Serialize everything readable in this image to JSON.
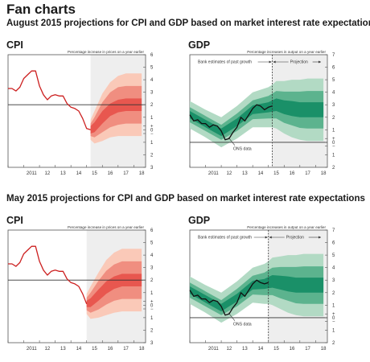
{
  "page": {
    "title": "Fan charts",
    "section_aug": "August 2015 projections for CPI and GDP based on market interest rate expectations",
    "section_may": "May 2015 projections for CPI and GDP based on market interest rate expectations"
  },
  "colors": {
    "cpi_line": "#cc1f1f",
    "cpi_band_inner": "#e8574f",
    "cpi_band_mid": "#f08e80",
    "cpi_band_outer": "#fac9b8",
    "gdp_line": "#111111",
    "gdp_band_inner": "#1a9068",
    "gdp_band_mid": "#5cb38e",
    "gdp_band_outer": "#b2dac4",
    "projection_shade": "#eeeeee"
  },
  "chart_data": [
    {
      "id": "aug-cpi",
      "type": "line",
      "label": "CPI",
      "ylabel": "Percentage increase in prices on a year earlier",
      "ylim": [
        -3,
        6
      ],
      "yticks": [
        "6",
        "5",
        "4",
        "3",
        "2",
        "1",
        "+",
        "0",
        "−",
        "1",
        "2",
        "3"
      ],
      "ytick_values": [
        6,
        5,
        4,
        3,
        2,
        1,
        0.3,
        0,
        -0.3,
        -1,
        -2,
        -3
      ],
      "xlim": [
        2010,
        2018.75
      ],
      "xtick_labels": [
        "2011",
        "12",
        "13",
        "14",
        "15",
        "16",
        "17",
        "18"
      ],
      "xtick_values": [
        2011.5,
        2012.5,
        2013.5,
        2014.5,
        2015.5,
        2016.5,
        2017.5,
        2018.5
      ],
      "target": 2,
      "zero_line": false,
      "projection_start": 2015.25,
      "history": [
        [
          2010.0,
          3.3
        ],
        [
          2010.25,
          3.3
        ],
        [
          2010.5,
          3.1
        ],
        [
          2010.75,
          3.4
        ],
        [
          2011.0,
          4.1
        ],
        [
          2011.25,
          4.4
        ],
        [
          2011.5,
          4.7
        ],
        [
          2011.75,
          4.7
        ],
        [
          2012.0,
          3.5
        ],
        [
          2012.25,
          2.8
        ],
        [
          2012.5,
          2.4
        ],
        [
          2012.75,
          2.7
        ],
        [
          2013.0,
          2.8
        ],
        [
          2013.25,
          2.7
        ],
        [
          2013.5,
          2.7
        ],
        [
          2013.75,
          2.1
        ],
        [
          2014.0,
          1.8
        ],
        [
          2014.25,
          1.7
        ],
        [
          2014.5,
          1.5
        ],
        [
          2014.75,
          0.9
        ],
        [
          2015.0,
          0.1
        ],
        [
          2015.25,
          0.0
        ]
      ],
      "fan": {
        "x": [
          2015.25,
          2015.5,
          2016.0,
          2016.5,
          2017.0,
          2017.5,
          2018.0,
          2018.5
        ],
        "center": [
          0.0,
          0.2,
          1.0,
          1.6,
          1.9,
          2.0,
          2.0,
          2.0
        ],
        "inner": [
          0.3,
          0.4,
          0.5,
          0.5,
          0.5,
          0.5,
          0.5,
          0.5
        ],
        "mid": [
          0.5,
          0.8,
          1.2,
          1.4,
          1.5,
          1.5,
          1.5,
          1.5
        ],
        "outer": [
          0.8,
          1.3,
          1.9,
          2.2,
          2.4,
          2.5,
          2.5,
          2.5
        ]
      }
    },
    {
      "id": "aug-gdp",
      "type": "line",
      "label": "GDP",
      "ylabel": "Percentage increases in output on a year earlier",
      "ylim": [
        -2,
        7
      ],
      "yticks": [
        "7",
        "6",
        "5",
        "4",
        "3",
        "2",
        "1",
        "+",
        "0",
        "−",
        "1",
        "2"
      ],
      "ytick_values": [
        7,
        6,
        5,
        4,
        3,
        2,
        1,
        0.3,
        0,
        -0.3,
        -1,
        -2
      ],
      "xlim": [
        2010,
        2018.75
      ],
      "xtick_labels": [
        "2011",
        "12",
        "13",
        "14",
        "15",
        "16",
        "17",
        "18"
      ],
      "xtick_values": [
        2011.5,
        2012.5,
        2013.5,
        2014.5,
        2015.5,
        2016.5,
        2017.5,
        2018.5
      ],
      "target": null,
      "zero_line": true,
      "projection_start": 2015.25,
      "annotations": {
        "past": "Bank estimates of past growth",
        "projection": "Projection",
        "ons": "ONS data"
      },
      "history": [
        [
          2010.0,
          2.2
        ],
        [
          2010.25,
          1.7
        ],
        [
          2010.5,
          1.8
        ],
        [
          2010.75,
          1.5
        ],
        [
          2011.0,
          1.5
        ],
        [
          2011.25,
          1.2
        ],
        [
          2011.5,
          1.4
        ],
        [
          2011.75,
          1.3
        ],
        [
          2012.0,
          0.9
        ],
        [
          2012.25,
          0.2
        ],
        [
          2012.5,
          0.3
        ],
        [
          2012.75,
          0.8
        ],
        [
          2013.0,
          1.2
        ],
        [
          2013.25,
          2.0
        ],
        [
          2013.5,
          1.7
        ],
        [
          2013.75,
          2.2
        ],
        [
          2014.0,
          2.7
        ],
        [
          2014.25,
          3.0
        ],
        [
          2014.5,
          2.9
        ],
        [
          2014.75,
          2.6
        ],
        [
          2015.0,
          2.8
        ],
        [
          2015.25,
          2.9
        ]
      ],
      "fan": {
        "x": [
          2010.0,
          2011.0,
          2012.0,
          2013.0,
          2014.0,
          2015.0,
          2015.25,
          2015.5,
          2016.0,
          2016.5,
          2017.0,
          2017.5,
          2018.0,
          2018.5
        ],
        "center": [
          2.2,
          1.5,
          0.8,
          1.6,
          2.6,
          2.8,
          2.9,
          3.0,
          2.8,
          2.7,
          2.6,
          2.6,
          2.6,
          2.6
        ],
        "inner": [
          0.3,
          0.3,
          0.3,
          0.3,
          0.35,
          0.4,
          0.45,
          0.5,
          0.55,
          0.6,
          0.6,
          0.6,
          0.6,
          0.6
        ],
        "mid": [
          0.6,
          0.6,
          0.6,
          0.7,
          0.75,
          0.9,
          1.0,
          1.1,
          1.25,
          1.35,
          1.45,
          1.5,
          1.5,
          1.5
        ],
        "outer": [
          1.1,
          1.1,
          1.2,
          1.3,
          1.4,
          1.6,
          1.7,
          1.9,
          2.1,
          2.3,
          2.4,
          2.5,
          2.5,
          2.5
        ]
      }
    },
    {
      "id": "may-cpi",
      "type": "line",
      "label": "CPI",
      "ylabel": "Percentage increase in prices on a year earlier",
      "ylim": [
        -3,
        6
      ],
      "yticks": [
        "6",
        "5",
        "4",
        "3",
        "2",
        "1",
        "+",
        "0",
        "−",
        "1",
        "2",
        "3"
      ],
      "ytick_values": [
        6,
        5,
        4,
        3,
        2,
        1,
        0.3,
        0,
        -0.3,
        -1,
        -2,
        -3
      ],
      "xlim": [
        2010,
        2018.75
      ],
      "xtick_labels": [
        "2011",
        "12",
        "13",
        "14",
        "15",
        "16",
        "17",
        "18"
      ],
      "xtick_values": [
        2011.5,
        2012.5,
        2013.5,
        2014.5,
        2015.5,
        2016.5,
        2017.5,
        2018.5
      ],
      "target": 2,
      "zero_line": false,
      "projection_start": 2015.0,
      "history": [
        [
          2010.0,
          3.3
        ],
        [
          2010.25,
          3.3
        ],
        [
          2010.5,
          3.1
        ],
        [
          2010.75,
          3.4
        ],
        [
          2011.0,
          4.1
        ],
        [
          2011.25,
          4.4
        ],
        [
          2011.5,
          4.7
        ],
        [
          2011.75,
          4.7
        ],
        [
          2012.0,
          3.5
        ],
        [
          2012.25,
          2.8
        ],
        [
          2012.5,
          2.4
        ],
        [
          2012.75,
          2.7
        ],
        [
          2013.0,
          2.8
        ],
        [
          2013.25,
          2.7
        ],
        [
          2013.5,
          2.7
        ],
        [
          2013.75,
          2.1
        ],
        [
          2014.0,
          1.8
        ],
        [
          2014.25,
          1.7
        ],
        [
          2014.5,
          1.5
        ],
        [
          2014.75,
          0.9
        ],
        [
          2015.0,
          0.1
        ]
      ],
      "fan": {
        "x": [
          2015.0,
          2015.25,
          2015.75,
          2016.25,
          2016.75,
          2017.25,
          2017.75,
          2018.5
        ],
        "center": [
          0.1,
          0.2,
          0.8,
          1.4,
          1.8,
          2.0,
          2.0,
          2.0
        ],
        "inner": [
          0.25,
          0.35,
          0.45,
          0.5,
          0.5,
          0.5,
          0.5,
          0.5
        ],
        "mid": [
          0.5,
          0.8,
          1.15,
          1.35,
          1.45,
          1.5,
          1.5,
          1.5
        ],
        "outer": [
          0.8,
          1.3,
          1.8,
          2.2,
          2.4,
          2.5,
          2.5,
          2.5
        ]
      }
    },
    {
      "id": "may-gdp",
      "type": "line",
      "label": "GDP",
      "ylabel": "Percentage increases in output on a year earlier",
      "ylim": [
        -2,
        7
      ],
      "yticks": [
        "7",
        "6",
        "5",
        "4",
        "3",
        "2",
        "1",
        "+",
        "0",
        "−",
        "1",
        "2"
      ],
      "ytick_values": [
        7,
        6,
        5,
        4,
        3,
        2,
        1,
        0.3,
        0,
        -0.3,
        -1,
        -2
      ],
      "xlim": [
        2010,
        2018.75
      ],
      "xtick_labels": [
        "2011",
        "12",
        "13",
        "14",
        "15",
        "16",
        "17",
        "18"
      ],
      "xtick_values": [
        2011.5,
        2012.5,
        2013.5,
        2014.5,
        2015.5,
        2016.5,
        2017.5,
        2018.5
      ],
      "target": null,
      "zero_line": true,
      "projection_start": 2015.0,
      "annotations": {
        "past": "Bank estimates of past growth",
        "projection": "Projection",
        "ons": "ONS data"
      },
      "history": [
        [
          2010.0,
          2.2
        ],
        [
          2010.25,
          1.7
        ],
        [
          2010.5,
          1.8
        ],
        [
          2010.75,
          1.5
        ],
        [
          2011.0,
          1.5
        ],
        [
          2011.25,
          1.2
        ],
        [
          2011.5,
          1.4
        ],
        [
          2011.75,
          1.3
        ],
        [
          2012.0,
          0.9
        ],
        [
          2012.25,
          0.2
        ],
        [
          2012.5,
          0.3
        ],
        [
          2012.75,
          0.8
        ],
        [
          2013.0,
          1.2
        ],
        [
          2013.25,
          2.0
        ],
        [
          2013.5,
          1.7
        ],
        [
          2013.75,
          2.2
        ],
        [
          2014.0,
          2.7
        ],
        [
          2014.25,
          3.0
        ],
        [
          2014.5,
          2.8
        ],
        [
          2014.75,
          2.7
        ],
        [
          2015.0,
          2.8
        ]
      ],
      "fan": {
        "x": [
          2010.0,
          2011.0,
          2012.0,
          2013.0,
          2014.0,
          2014.75,
          2015.0,
          2015.25,
          2015.75,
          2016.25,
          2016.75,
          2017.25,
          2017.75,
          2018.5
        ],
        "center": [
          2.2,
          1.5,
          0.8,
          1.6,
          2.6,
          2.7,
          2.8,
          2.9,
          2.8,
          2.7,
          2.6,
          2.6,
          2.6,
          2.6
        ],
        "inner": [
          0.3,
          0.3,
          0.3,
          0.3,
          0.35,
          0.4,
          0.45,
          0.5,
          0.55,
          0.6,
          0.6,
          0.6,
          0.6,
          0.6
        ],
        "mid": [
          0.6,
          0.6,
          0.6,
          0.7,
          0.75,
          0.9,
          1.0,
          1.1,
          1.25,
          1.35,
          1.45,
          1.5,
          1.5,
          1.5
        ],
        "outer": [
          1.1,
          1.1,
          1.2,
          1.3,
          1.4,
          1.6,
          1.7,
          1.9,
          2.1,
          2.3,
          2.4,
          2.5,
          2.5,
          2.5
        ]
      }
    }
  ]
}
